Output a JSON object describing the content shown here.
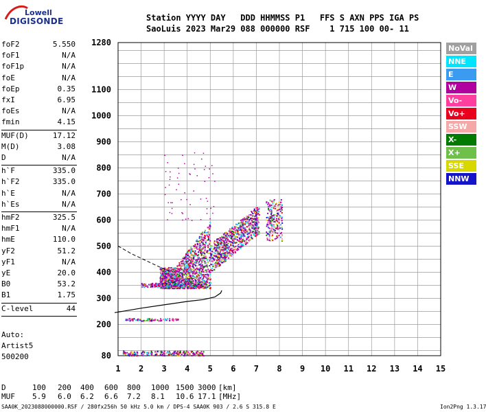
{
  "logo": {
    "line1": "Lowell",
    "line2": "DIGISONDE"
  },
  "header": {
    "row1": "Station YYYY DAY   DDD HHMMSS P1   FFS S AXN PPS IGA PS",
    "row2": "SaoLuis 2023 Mar29 088 000000 RSF    1 715 100 00- 11"
  },
  "params": [
    {
      "label": "foF2",
      "value": "5.550"
    },
    {
      "label": "foF1",
      "value": "N/A"
    },
    {
      "label": "foF1p",
      "value": "N/A"
    },
    {
      "label": "foE",
      "value": "N/A"
    },
    {
      "label": "foEp",
      "value": "0.35"
    },
    {
      "label": "fxI",
      "value": "6.95"
    },
    {
      "label": "foEs",
      "value": "N/A"
    },
    {
      "label": "fmin",
      "value": "4.15"
    },
    {
      "label": "MUF(D)",
      "value": "17.12"
    },
    {
      "label": "M(D)",
      "value": "3.08"
    },
    {
      "label": "D",
      "value": "N/A"
    },
    {
      "label": "h`F",
      "value": "335.0"
    },
    {
      "label": "h`F2",
      "value": "335.0"
    },
    {
      "label": "h`E",
      "value": "N/A"
    },
    {
      "label": "h`Es",
      "value": "N/A"
    },
    {
      "label": "hmF2",
      "value": "325.5"
    },
    {
      "label": "hmF1",
      "value": "N/A"
    },
    {
      "label": "hmE",
      "value": "110.0"
    },
    {
      "label": "yF2",
      "value": "51.2"
    },
    {
      "label": "yF1",
      "value": "N/A"
    },
    {
      "label": "yE",
      "value": "20.0"
    },
    {
      "label": "B0",
      "value": "53.2"
    },
    {
      "label": "B1",
      "value": "1.75"
    },
    {
      "label": "C-level",
      "value": "44"
    }
  ],
  "autoscale": {
    "line1": "Auto:",
    "line2": "Artist5",
    "line3": "500200"
  },
  "legend": [
    {
      "label": "NoVal",
      "color": "#a0a0a0"
    },
    {
      "label": "NNE",
      "color": "#00e5ff"
    },
    {
      "label": "E",
      "color": "#3a9bf0"
    },
    {
      "label": "W",
      "color": "#b0009e"
    },
    {
      "label": "Vo-",
      "color": "#ff3fa0"
    },
    {
      "label": "Vo+",
      "color": "#e8001c"
    },
    {
      "label": "SSW",
      "color": "#f4a8a8"
    },
    {
      "label": "X-",
      "color": "#007a00"
    },
    {
      "label": "X+",
      "color": "#6ec04a"
    },
    {
      "label": "SSE",
      "color": "#d8d800"
    },
    {
      "label": "NNW",
      "color": "#1414c8"
    }
  ],
  "muf_table": {
    "d_label": "D",
    "d_values": [
      "100",
      "200",
      "400",
      "600",
      "800",
      "1000",
      "1500",
      "3000"
    ],
    "d_unit": "[km]",
    "muf_label": "MUF",
    "muf_values": [
      "5.9",
      "6.0",
      "6.2",
      "6.6",
      "7.2",
      "8.1",
      "10.6",
      "17.1"
    ],
    "muf_unit": "[MHz]"
  },
  "footer": "SAA0K_2023088000000.RSF / 280fx256h 50 kHz 5.0 km / DPS-4 SAA0K 903 / 2.6 S 315.8 E",
  "version": "Ion2Png 1.3.17",
  "chart_data": {
    "type": "scatter",
    "xlim": [
      1,
      15
    ],
    "ylim": [
      80,
      1280
    ],
    "x_ticks": [
      1,
      2,
      3,
      4,
      5,
      6,
      7,
      8,
      9,
      10,
      11,
      12,
      13,
      14,
      15
    ],
    "y_ticks": [
      80,
      200,
      300,
      400,
      500,
      600,
      700,
      800,
      900,
      1000,
      1100,
      1280
    ],
    "grid": true,
    "profile_curve": [
      [
        0.85,
        245
      ],
      [
        2,
        262
      ],
      [
        3,
        275
      ],
      [
        4,
        288
      ],
      [
        4.7,
        295
      ],
      [
        5.2,
        305
      ],
      [
        5.45,
        320
      ],
      [
        5.5,
        330
      ]
    ],
    "profile_dashed": [
      [
        1,
        500
      ],
      [
        1.6,
        470
      ],
      [
        2.2,
        445
      ],
      [
        2.8,
        420
      ],
      [
        3.2,
        405
      ]
    ],
    "clusters": [
      {
        "x": [
          1.3,
          3.6
        ],
        "y": [
          215,
          225
        ],
        "n": 90
      },
      {
        "x": [
          1.2,
          4.7
        ],
        "y": [
          82,
          100
        ],
        "n": 220
      },
      {
        "x": [
          2.8,
          5.0
        ],
        "y": [
          340,
          600
        ],
        "n": 1500
      },
      {
        "x": [
          5.0,
          7.1
        ],
        "y": [
          400,
          640
        ],
        "n": 800
      },
      {
        "x": [
          7.4,
          8.1
        ],
        "y": [
          520,
          680
        ],
        "n": 200
      },
      {
        "x": [
          2.0,
          4.8
        ],
        "y": [
          345,
          360
        ],
        "n": 250
      }
    ]
  }
}
